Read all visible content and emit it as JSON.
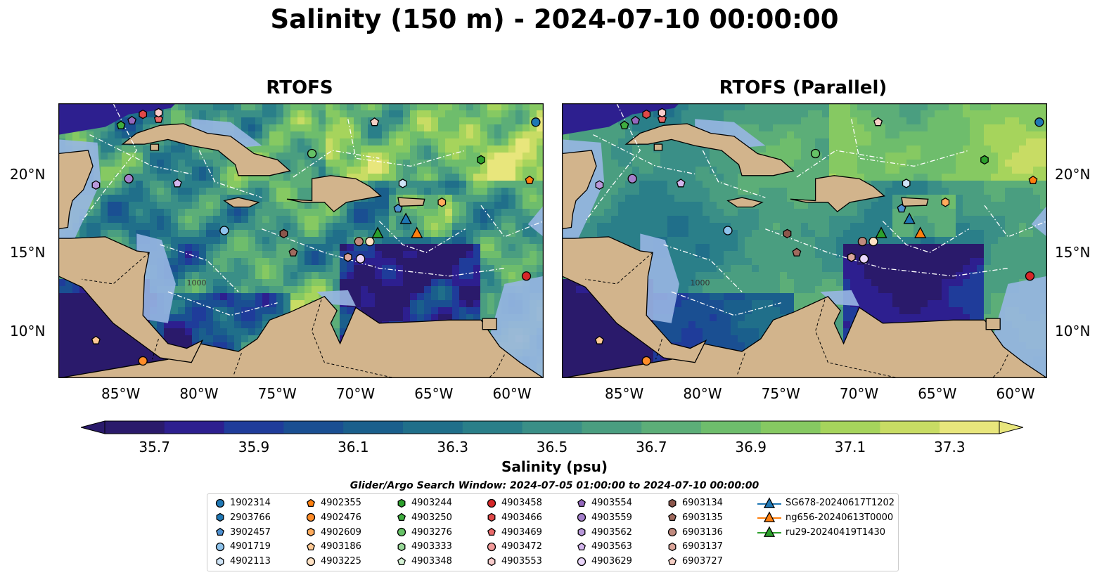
{
  "title": "Salinity (150 m) - 2024-07-10 00:00:00",
  "panels": [
    {
      "title": "RTOFS",
      "variant": "hi-contrast"
    },
    {
      "title": "RTOFS (Parallel)",
      "variant": "smooth"
    }
  ],
  "map": {
    "lon_range": [
      -89.0,
      -58.0
    ],
    "lat_range": [
      7.0,
      24.5
    ],
    "lon_ticks": [
      "85°W",
      "80°W",
      "75°W",
      "70°W",
      "65°W",
      "60°W"
    ],
    "lat_ticks": [
      "20°N",
      "15°N",
      "10°N"
    ],
    "land_color": "#d2b48c",
    "shelf_color": "#98b6e3",
    "isobath_label": "1000"
  },
  "colorbar": {
    "label": "Salinity (psu)",
    "ticks": [
      "35.7",
      "35.9",
      "36.1",
      "36.3",
      "36.5",
      "36.7",
      "36.9",
      "37.1",
      "37.3"
    ],
    "min": 35.6,
    "max": 37.4,
    "extend": "both",
    "colors": [
      "#2a1a6b",
      "#2d1f8f",
      "#1f3c9a",
      "#1a4f92",
      "#1a5f8c",
      "#206f8a",
      "#2a7f89",
      "#3a8f87",
      "#4a9e80",
      "#5cae78",
      "#6ebd6c",
      "#86c962",
      "#a6d45c",
      "#c8dc64",
      "#e8e67c"
    ]
  },
  "search_window": "Glider/Argo Search Window: 2024-07-05 01:00:00 to 2024-07-10 00:00:00",
  "floats": [
    {
      "id": "1902314",
      "marker": "circle",
      "color": "#1f77b4",
      "lon": -58.5,
      "lat": 23.3
    },
    {
      "id": "2903766",
      "marker": "hexagon",
      "color": "#1f77b4",
      "lon": null,
      "lat": null
    },
    {
      "id": "3902457",
      "marker": "pentagon",
      "color": "#4c8fd0",
      "lon": -67.3,
      "lat": 17.8
    },
    {
      "id": "4901719",
      "marker": "circle",
      "color": "#8ec3ec",
      "lon": -78.4,
      "lat": 16.4
    },
    {
      "id": "4902113",
      "marker": "hexagon",
      "color": "#cfe4f7",
      "lon": -67.0,
      "lat": 19.4
    },
    {
      "id": "4902355",
      "marker": "pentagon",
      "color": "#ff7f0e",
      "lon": -58.9,
      "lat": 19.6
    },
    {
      "id": "4902476",
      "marker": "circle",
      "color": "#ff8c28",
      "lon": -83.6,
      "lat": 8.1
    },
    {
      "id": "4902609",
      "marker": "hexagon",
      "color": "#ffab5c",
      "lon": -64.5,
      "lat": 18.2
    },
    {
      "id": "4903186",
      "marker": "pentagon",
      "color": "#ffc994",
      "lon": -86.6,
      "lat": 9.4
    },
    {
      "id": "4903225",
      "marker": "circle",
      "color": "#ffe2c4",
      "lon": -69.1,
      "lat": 15.7
    },
    {
      "id": "4903244",
      "marker": "hexagon",
      "color": "#2ca02c",
      "lon": -62.0,
      "lat": 20.9
    },
    {
      "id": "4903250",
      "marker": "pentagon",
      "color": "#3fae3f",
      "lon": -85.0,
      "lat": 23.1
    },
    {
      "id": "4903276",
      "marker": "circle",
      "color": "#66c266",
      "lon": -72.8,
      "lat": 21.3
    },
    {
      "id": "4903333",
      "marker": "hexagon",
      "color": "#98d898",
      "lon": null,
      "lat": null
    },
    {
      "id": "4903348",
      "marker": "pentagon",
      "color": "#d6f3d6",
      "lon": null,
      "lat": null
    },
    {
      "id": "4903458",
      "marker": "circle",
      "color": "#d62728",
      "lon": -59.1,
      "lat": 13.5
    },
    {
      "id": "4903466",
      "marker": "hexagon",
      "color": "#e04848",
      "lon": -83.6,
      "lat": 23.8
    },
    {
      "id": "4903469",
      "marker": "pentagon",
      "color": "#ea6a6a",
      "lon": -82.6,
      "lat": 23.5
    },
    {
      "id": "4903472",
      "marker": "circle",
      "color": "#f29a9a",
      "lon": null,
      "lat": null
    },
    {
      "id": "4903553",
      "marker": "hexagon",
      "color": "#f8cccc",
      "lon": -82.6,
      "lat": 23.9
    },
    {
      "id": "4903554",
      "marker": "pentagon",
      "color": "#9467bd",
      "lon": -84.3,
      "lat": 23.4
    },
    {
      "id": "4903559",
      "marker": "circle",
      "color": "#a47fcb",
      "lon": -84.5,
      "lat": 19.7
    },
    {
      "id": "4903562",
      "marker": "hexagon",
      "color": "#b898da",
      "lon": -86.6,
      "lat": 19.3
    },
    {
      "id": "4903563",
      "marker": "pentagon",
      "color": "#d4b6ee",
      "lon": -81.4,
      "lat": 19.4
    },
    {
      "id": "4903629",
      "marker": "circle",
      "color": "#ead6fa",
      "lon": -69.7,
      "lat": 14.6
    },
    {
      "id": "6903134",
      "marker": "hexagon",
      "color": "#8c564b",
      "lon": -74.6,
      "lat": 16.2
    },
    {
      "id": "6903135",
      "marker": "pentagon",
      "color": "#a06a5e",
      "lon": -74.0,
      "lat": 15.0
    },
    {
      "id": "6903136",
      "marker": "circle",
      "color": "#c08a7e",
      "lon": -69.8,
      "lat": 15.7
    },
    {
      "id": "6903137",
      "marker": "hexagon",
      "color": "#dba59a",
      "lon": -70.5,
      "lat": 14.7
    },
    {
      "id": "6903727",
      "marker": "pentagon",
      "color": "#f6d0c6",
      "lon": -68.8,
      "lat": 23.3
    }
  ],
  "gliders": [
    {
      "id": "SG678-20240617T1202",
      "color": "#1f77b4",
      "lon": -66.8,
      "lat": 17.1
    },
    {
      "id": "ng656-20240613T0000",
      "color": "#ff7f0e",
      "lon": -66.1,
      "lat": 16.2
    },
    {
      "id": "ru29-20240419T1430",
      "color": "#2ca02c",
      "lon": -68.6,
      "lat": 16.2
    }
  ]
}
